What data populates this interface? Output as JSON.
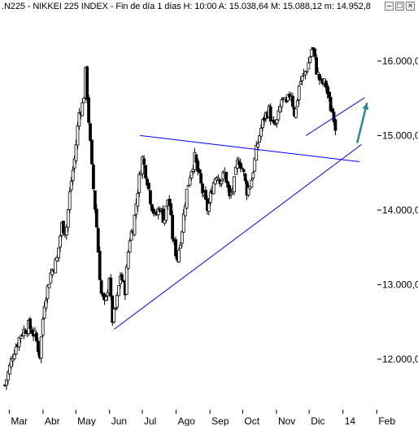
{
  "window": {
    "title": ".N225 - NIKKEI 225 INDEX - Fin de día 1 días  H: 10:00  A: 15.038,64  M: 15.088,12  m: 14.952,8",
    "buttons": {
      "minimize": "–",
      "maximize": "□",
      "close": "×"
    }
  },
  "chart_data": {
    "type": "candlestick",
    "title": ".N225 - NIKKEI 225 INDEX - Fin de día 1 días",
    "quote": {
      "H": "10:00",
      "A": "15.038,64",
      "M": "15.088,12",
      "m": "14.952,8"
    },
    "ylim": [
      11300,
      16600
    ],
    "y_ticks": [
      12000,
      13000,
      14000,
      15000,
      16000
    ],
    "y_tick_labels": [
      "12.000,0",
      "13.000,0",
      "14.000,0",
      "15.000,0",
      "16.000,0"
    ],
    "x_range_days": [
      0,
      340
    ],
    "x_ticks": [
      {
        "label": "Mar",
        "day": 4
      },
      {
        "label": "Abr",
        "day": 35
      },
      {
        "label": "May",
        "day": 65
      },
      {
        "label": "Jun",
        "day": 96
      },
      {
        "label": "Jul",
        "day": 126
      },
      {
        "label": "Ago",
        "day": 157
      },
      {
        "label": "Sep",
        "day": 188
      },
      {
        "label": "Oct",
        "day": 218
      },
      {
        "label": "Nov",
        "day": 249
      },
      {
        "label": "Dic",
        "day": 279
      },
      {
        "label": "14",
        "day": 310
      },
      {
        "label": "Feb",
        "day": 341
      }
    ],
    "price_anchors": [
      [
        0,
        11650
      ],
      [
        8,
        12100
      ],
      [
        15,
        12350
      ],
      [
        22,
        12450
      ],
      [
        28,
        12300
      ],
      [
        32,
        12050
      ],
      [
        36,
        12750
      ],
      [
        42,
        13150
      ],
      [
        48,
        13350
      ],
      [
        52,
        13800
      ],
      [
        56,
        13700
      ],
      [
        60,
        14300
      ],
      [
        64,
        14700
      ],
      [
        68,
        15300
      ],
      [
        72,
        15450
      ],
      [
        74,
        15850
      ],
      [
        76,
        15400
      ],
      [
        80,
        14500
      ],
      [
        84,
        13800
      ],
      [
        88,
        12900
      ],
      [
        92,
        12700
      ],
      [
        96,
        13150
      ],
      [
        98,
        12500
      ],
      [
        102,
        12700
      ],
      [
        106,
        13150
      ],
      [
        110,
        12900
      ],
      [
        114,
        13600
      ],
      [
        118,
        13800
      ],
      [
        122,
        14300
      ],
      [
        126,
        14700
      ],
      [
        130,
        14450
      ],
      [
        134,
        14100
      ],
      [
        138,
        13900
      ],
      [
        142,
        14050
      ],
      [
        146,
        13850
      ],
      [
        150,
        14200
      ],
      [
        154,
        13600
      ],
      [
        158,
        13350
      ],
      [
        162,
        13700
      ],
      [
        166,
        14200
      ],
      [
        170,
        14500
      ],
      [
        174,
        14700
      ],
      [
        178,
        14450
      ],
      [
        182,
        14200
      ],
      [
        186,
        14000
      ],
      [
        190,
        14300
      ],
      [
        194,
        14500
      ],
      [
        198,
        14400
      ],
      [
        202,
        14500
      ],
      [
        206,
        14150
      ],
      [
        210,
        14350
      ],
      [
        214,
        14700
      ],
      [
        218,
        14550
      ],
      [
        222,
        14250
      ],
      [
        226,
        14400
      ],
      [
        230,
        14750
      ],
      [
        234,
        15050
      ],
      [
        238,
        15250
      ],
      [
        242,
        15350
      ],
      [
        246,
        15100
      ],
      [
        250,
        15200
      ],
      [
        254,
        15500
      ],
      [
        258,
        15400
      ],
      [
        262,
        15600
      ],
      [
        266,
        15250
      ],
      [
        270,
        15700
      ],
      [
        274,
        15800
      ],
      [
        278,
        15950
      ],
      [
        282,
        16200
      ],
      [
        286,
        15850
      ],
      [
        290,
        15700
      ],
      [
        294,
        15700
      ],
      [
        298,
        15400
      ],
      [
        302,
        15250
      ],
      [
        304,
        15000
      ]
    ],
    "annotations": {
      "lines": [
        {
          "name": "upper-trendline",
          "color": "#0000ff",
          "from": [
            124,
            15000
          ],
          "to": [
            325,
            14650
          ]
        },
        {
          "name": "lower-trendline",
          "color": "#0000ff",
          "from": [
            100,
            12400
          ],
          "to": [
            327,
            14880
          ]
        },
        {
          "name": "channel-line",
          "color": "#0000ff",
          "from": [
            276,
            15000
          ],
          "to": [
            330,
            15510
          ]
        }
      ],
      "arrow": {
        "name": "projection-arrow",
        "color": "#2e8b8b",
        "from": [
          323,
          14900
        ],
        "to": [
          332,
          15440
        ]
      }
    },
    "grid": false,
    "colors": {
      "candle": "#000000",
      "trendline": "#0000ff",
      "arrow": "#2e8b8b"
    }
  }
}
